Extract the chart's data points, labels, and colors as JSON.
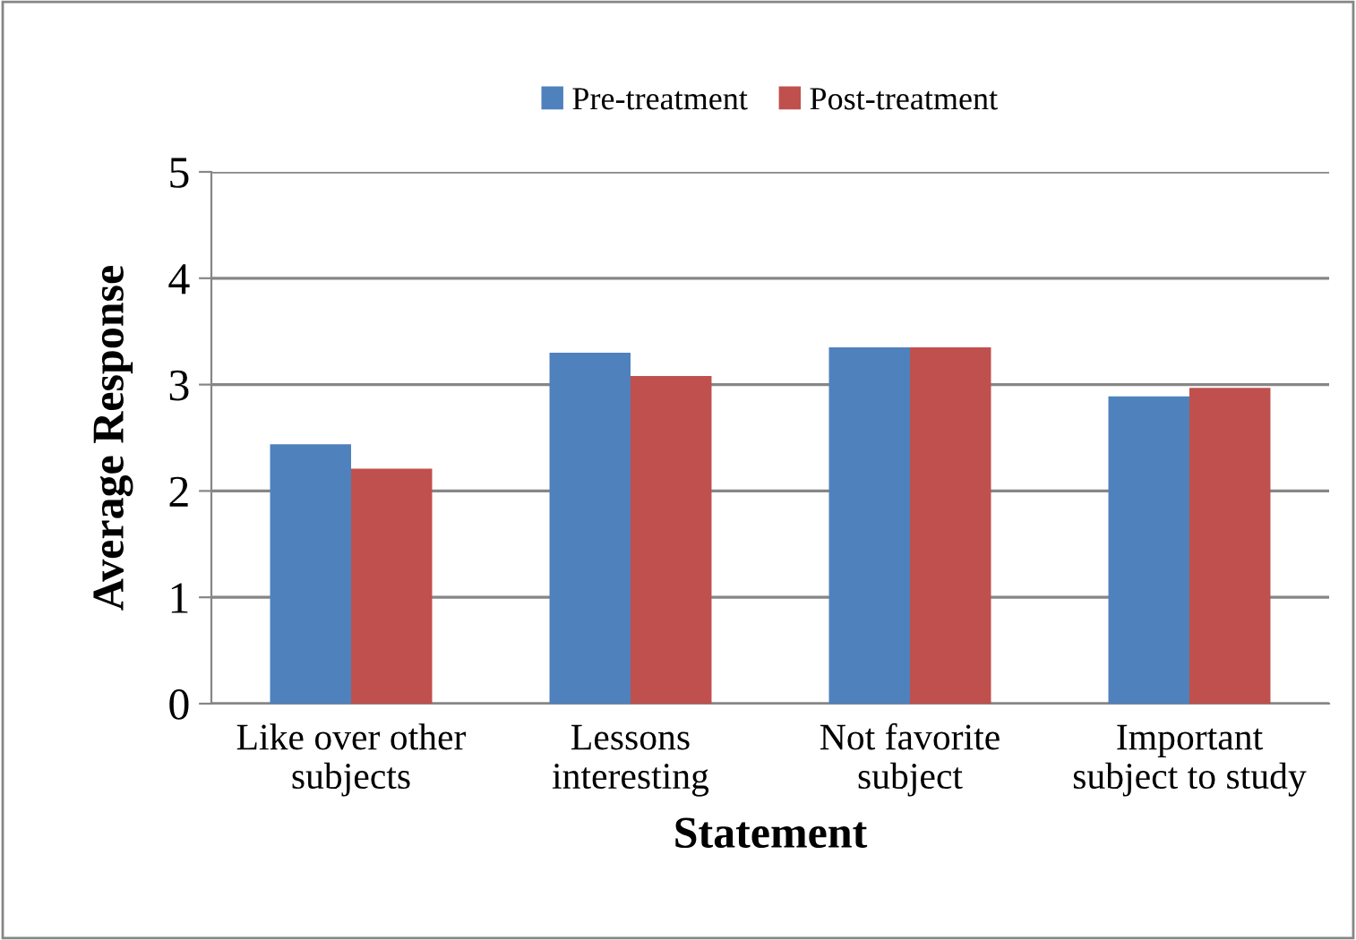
{
  "chart_data": {
    "type": "bar",
    "xlabel": "Statement",
    "ylabel": "Average Response",
    "categories": [
      "Like over other\nsubjects",
      "Lessons\ninteresting",
      "Not favorite\nsubject",
      "Important\nsubject to study"
    ],
    "series": [
      {
        "name": "Pre-treatment",
        "color": "#4f81bd",
        "values": [
          2.44,
          3.3,
          3.35,
          2.89
        ]
      },
      {
        "name": "Post-treatment",
        "color": "#c0504d",
        "values": [
          2.21,
          3.08,
          3.35,
          2.97
        ]
      }
    ],
    "ylim": [
      0,
      5
    ],
    "yticks": [
      0,
      1,
      2,
      3,
      4,
      5
    ],
    "grid": "y",
    "legend": "top"
  }
}
